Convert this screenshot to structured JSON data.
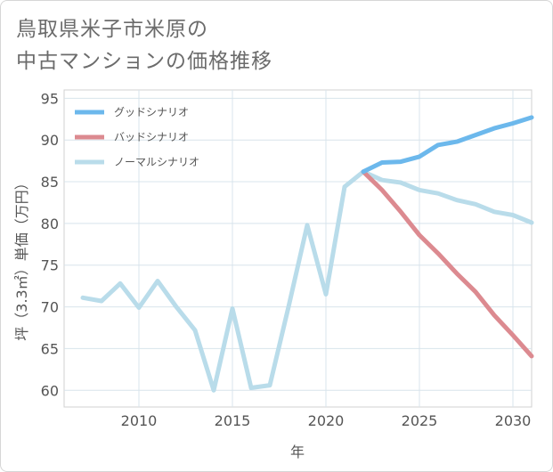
{
  "title_lines": [
    "鳥取県米子市米原の",
    "中古マンションの価格推移"
  ],
  "chart_data": {
    "type": "line",
    "title": "鳥取県米子市米原の中古マンションの価格推移",
    "xlabel": "年",
    "ylabel": "坪（3.3㎡）単価（万円）",
    "xlim": [
      2006,
      2031
    ],
    "ylim": [
      58,
      96
    ],
    "x_ticks": [
      2010,
      2015,
      2020,
      2025,
      2030
    ],
    "y_ticks": [
      60,
      65,
      70,
      75,
      80,
      85,
      90,
      95
    ],
    "grid": true,
    "legend_position": "top-left",
    "series": [
      {
        "name": "グッドシナリオ",
        "color": "#6cb8ec",
        "x": [
          2022,
          2023,
          2024,
          2025,
          2026,
          2027,
          2028,
          2029,
          2030,
          2031
        ],
        "y": [
          86.2,
          87.3,
          87.4,
          88.0,
          89.4,
          89.8,
          90.6,
          91.4,
          92.0,
          92.7
        ]
      },
      {
        "name": "バッドシナリオ",
        "color": "#dc8a90",
        "x": [
          2022,
          2023,
          2024,
          2025,
          2026,
          2027,
          2028,
          2029,
          2030,
          2031
        ],
        "y": [
          86.2,
          84.0,
          81.4,
          78.6,
          76.4,
          74.0,
          71.8,
          69.0,
          66.6,
          64.1
        ]
      },
      {
        "name": "ノーマルシナリオ",
        "color": "#b9dcea",
        "x": [
          2007,
          2008,
          2009,
          2010,
          2011,
          2012,
          2013,
          2014,
          2015,
          2016,
          2017,
          2018,
          2019,
          2020,
          2021,
          2022,
          2023,
          2024,
          2025,
          2026,
          2027,
          2028,
          2029,
          2030,
          2031
        ],
        "y": [
          71.1,
          70.7,
          72.8,
          69.9,
          73.1,
          70.0,
          67.2,
          60.0,
          69.8,
          60.3,
          60.6,
          70.0,
          79.8,
          71.5,
          84.4,
          86.2,
          85.2,
          84.9,
          84.0,
          83.6,
          82.8,
          82.3,
          81.4,
          81.0,
          80.1
        ]
      }
    ]
  }
}
